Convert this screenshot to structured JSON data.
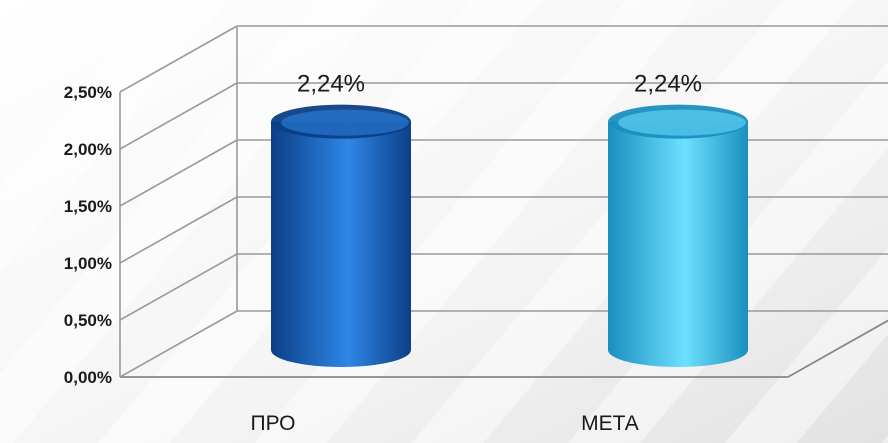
{
  "chart_data": {
    "type": "bar",
    "style": "3d-cylinder",
    "categories": [
      "ПРО",
      "МЕТА"
    ],
    "values": [
      2.24,
      2.24
    ],
    "data_labels": [
      "2,24%",
      "2,24%"
    ],
    "colors": [
      "#1565c8",
      "#3ec4ee"
    ],
    "ylim": [
      0,
      2.5
    ],
    "yticks": [
      0,
      0.5,
      1.0,
      1.5,
      2.0,
      2.5
    ],
    "ytick_labels": [
      "0,00%",
      "0,50%",
      "1,00%",
      "1,50%",
      "2,00%",
      "2,50%"
    ],
    "grid": true,
    "title": "",
    "xlabel": "",
    "ylabel": "",
    "legend": "none"
  }
}
